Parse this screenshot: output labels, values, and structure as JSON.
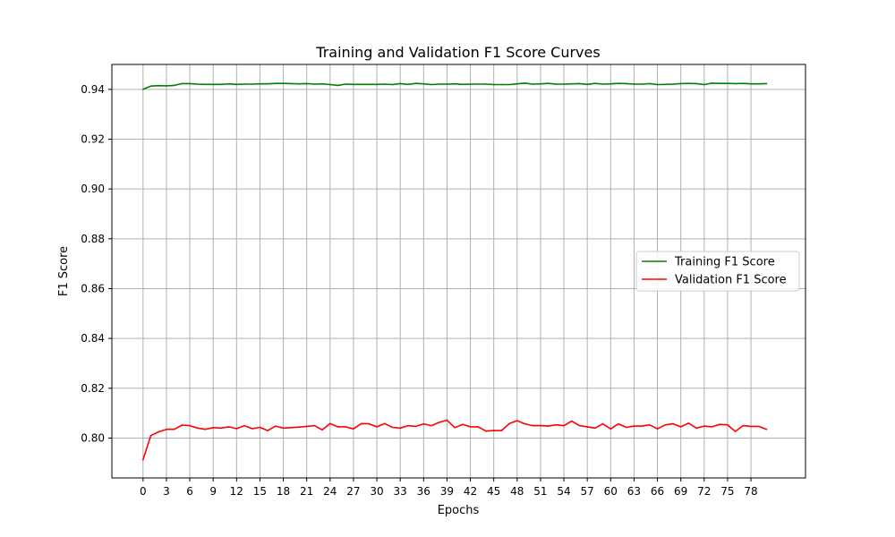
{
  "chart_data": {
    "type": "line",
    "title": "Training and Validation F1 Score Curves",
    "xlabel": "Epochs",
    "ylabel": "F1 Score",
    "xlim": [
      -4,
      85
    ],
    "ylim": [
      0.784,
      0.95
    ],
    "xticks": [
      0,
      3,
      6,
      9,
      12,
      15,
      18,
      21,
      24,
      27,
      30,
      33,
      36,
      39,
      42,
      45,
      48,
      51,
      54,
      57,
      60,
      63,
      66,
      69,
      72,
      75,
      78
    ],
    "yticks": [
      0.8,
      0.82,
      0.84,
      0.86,
      0.88,
      0.9,
      0.92,
      0.94
    ],
    "ytick_labels": [
      "0.80",
      "0.82",
      "0.84",
      "0.86",
      "0.88",
      "0.90",
      "0.92",
      "0.94"
    ],
    "grid": true,
    "legend_position": "center-right",
    "x": [
      0,
      1,
      2,
      3,
      4,
      5,
      6,
      7,
      8,
      9,
      10,
      11,
      12,
      13,
      14,
      15,
      16,
      17,
      18,
      19,
      20,
      21,
      22,
      23,
      24,
      25,
      26,
      27,
      28,
      29,
      30,
      31,
      32,
      33,
      34,
      35,
      36,
      37,
      38,
      39,
      40,
      41,
      42,
      43,
      44,
      45,
      46,
      47,
      48,
      49,
      50,
      51,
      52,
      53,
      54,
      55,
      56,
      57,
      58,
      59,
      60,
      61,
      62,
      63,
      64,
      65,
      66,
      67,
      68,
      69,
      70,
      71,
      72,
      73,
      74,
      75,
      76,
      77,
      78,
      79,
      80
    ],
    "series": [
      {
        "name": "Training F1 Score",
        "color": "#008000",
        "values": [
          0.94,
          0.9413,
          0.9415,
          0.9414,
          0.9416,
          0.9423,
          0.9423,
          0.9421,
          0.942,
          0.942,
          0.942,
          0.9422,
          0.942,
          0.9421,
          0.9421,
          0.9422,
          0.9422,
          0.9424,
          0.9424,
          0.9423,
          0.9422,
          0.9423,
          0.9421,
          0.9422,
          0.9419,
          0.9416,
          0.9421,
          0.942,
          0.942,
          0.942,
          0.942,
          0.9421,
          0.9419,
          0.9423,
          0.942,
          0.9424,
          0.9422,
          0.9419,
          0.9421,
          0.9421,
          0.9422,
          0.942,
          0.9421,
          0.9421,
          0.9421,
          0.9419,
          0.9419,
          0.9419,
          0.9422,
          0.9425,
          0.9421,
          0.9422,
          0.9424,
          0.9421,
          0.9421,
          0.9422,
          0.9423,
          0.942,
          0.9424,
          0.9421,
          0.9422,
          0.9424,
          0.9423,
          0.9421,
          0.9421,
          0.9423,
          0.9419,
          0.942,
          0.9421,
          0.9423,
          0.9424,
          0.9423,
          0.9419,
          0.9425,
          0.9424,
          0.9424,
          0.9423,
          0.9424,
          0.9422,
          0.9422,
          0.9423
        ]
      },
      {
        "name": "Validation F1 Score",
        "color": "#ff0000",
        "values": [
          0.7913,
          0.801,
          0.8025,
          0.8035,
          0.8035,
          0.8052,
          0.805,
          0.804,
          0.8035,
          0.8042,
          0.804,
          0.8045,
          0.8038,
          0.805,
          0.8038,
          0.8043,
          0.803,
          0.8048,
          0.804,
          0.8042,
          0.8044,
          0.8047,
          0.805,
          0.8033,
          0.8058,
          0.8045,
          0.8045,
          0.8037,
          0.8058,
          0.8057,
          0.8045,
          0.8058,
          0.8043,
          0.804,
          0.805,
          0.8047,
          0.8057,
          0.805,
          0.8063,
          0.8072,
          0.8042,
          0.8055,
          0.8045,
          0.8045,
          0.8028,
          0.803,
          0.803,
          0.8058,
          0.807,
          0.8057,
          0.805,
          0.805,
          0.8048,
          0.8053,
          0.805,
          0.8068,
          0.805,
          0.8045,
          0.804,
          0.8057,
          0.8037,
          0.8057,
          0.8043,
          0.8048,
          0.8048,
          0.8053,
          0.8037,
          0.8053,
          0.8057,
          0.8045,
          0.806,
          0.804,
          0.8048,
          0.8045,
          0.8055,
          0.8053,
          0.8027,
          0.805,
          0.8047,
          0.8047,
          0.8035
        ]
      }
    ]
  }
}
